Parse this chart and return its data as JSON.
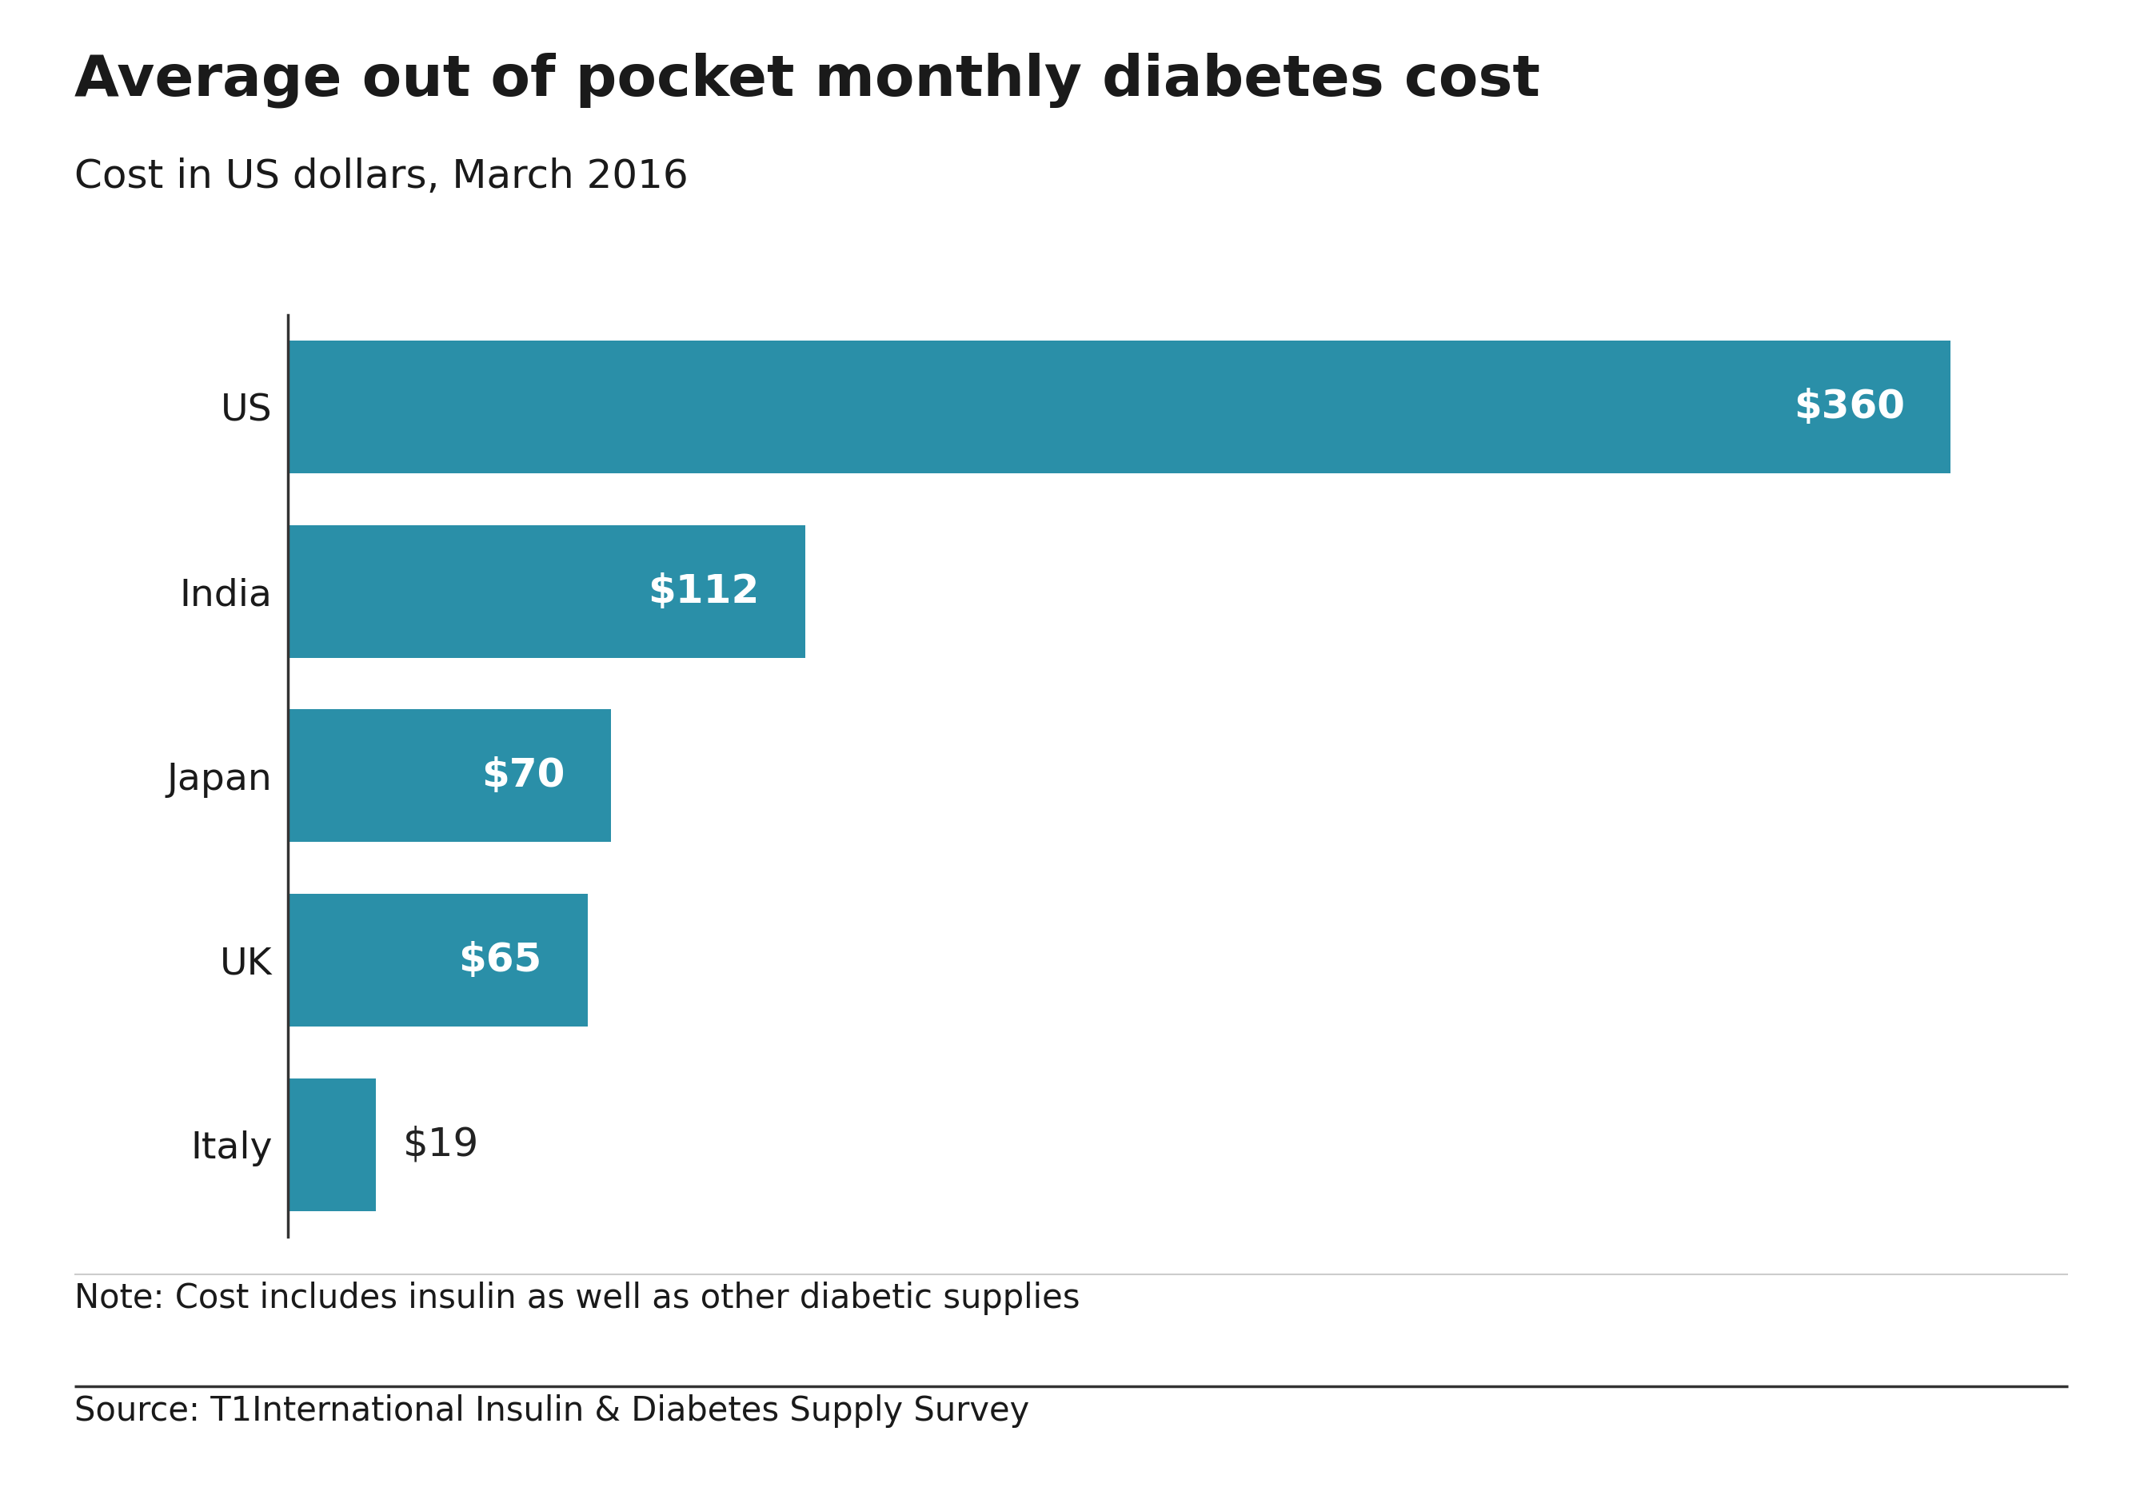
{
  "title": "Average out of pocket monthly diabetes cost",
  "subtitle": "Cost in US dollars, March 2016",
  "categories": [
    "US",
    "India",
    "Japan",
    "UK",
    "Italy"
  ],
  "values": [
    360,
    112,
    70,
    65,
    19
  ],
  "labels": [
    "$360",
    "$112",
    "$70",
    "$65",
    "$19"
  ],
  "bar_color": "#2a8fa8",
  "label_color_inside": "#ffffff",
  "label_color_outside": "#222222",
  "note": "Note: Cost includes insulin as well as other diabetic supplies",
  "source": "Source: T1International Insulin & Diabetes Supply Survey",
  "background_color": "#ffffff",
  "title_color": "#1a1a1a",
  "subtitle_color": "#1a1a1a",
  "axis_line_color": "#333333",
  "bbc_box_color": "#606060",
  "xlim": [
    0,
    390
  ],
  "title_fontsize": 52,
  "subtitle_fontsize": 36,
  "tick_label_fontsize": 34,
  "bar_label_fontsize": 36,
  "note_fontsize": 30,
  "source_fontsize": 30
}
